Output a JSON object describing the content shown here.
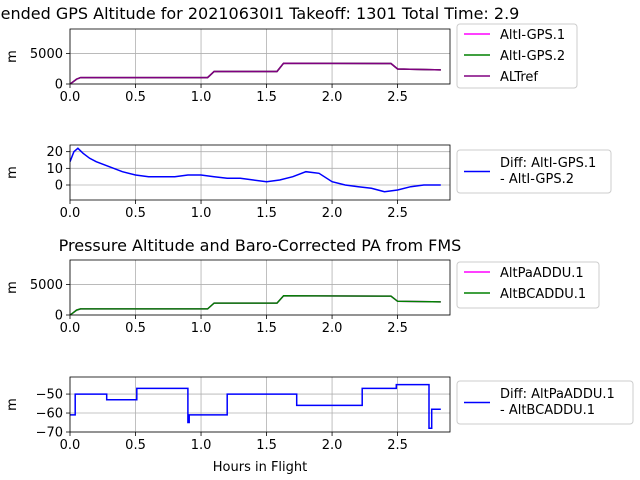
{
  "colors": {
    "magenta": "#ff00ff",
    "green": "#008000",
    "purple": "#800080",
    "blue": "#0000ff",
    "grid": "#b0b0b0"
  },
  "chart_data": [
    {
      "type": "line",
      "title": "ended GPS Altitude for 20210630I1 Takeoff: 1301 Total Time: 2.9",
      "xlabel": "",
      "ylabel": "m",
      "xlim": [
        0,
        2.9
      ],
      "ylim": [
        0,
        9000
      ],
      "xticks": [
        0,
        0.5,
        1,
        1.5,
        2,
        2.5
      ],
      "xtick_labels": [
        "0.0",
        "0.5",
        "1.0",
        "1.5",
        "2.0",
        "2.5"
      ],
      "yticks": [
        0,
        5000
      ],
      "ytick_labels": [
        "0",
        "5000"
      ],
      "grid": true,
      "legend_placement": "outside-right",
      "legend": [
        "AltI-GPS.1",
        "AltI-GPS.2",
        "ALTref"
      ],
      "series": [
        {
          "name": "AltI-GPS.1",
          "color": "#ff00ff",
          "x": [
            0,
            0.02,
            0.05,
            0.08,
            1.05,
            1.1,
            1.58,
            1.63,
            2.45,
            2.5,
            2.83
          ],
          "y": [
            0,
            300,
            800,
            1050,
            1050,
            2050,
            2050,
            3400,
            3350,
            2450,
            2300
          ]
        },
        {
          "name": "AltI-GPS.2",
          "color": "#008000",
          "x": [
            0,
            0.02,
            0.05,
            0.08,
            1.05,
            1.1,
            1.58,
            1.63,
            2.45,
            2.5,
            2.83
          ],
          "y": [
            0,
            300,
            800,
            1050,
            1050,
            2050,
            2050,
            3400,
            3350,
            2450,
            2300
          ]
        },
        {
          "name": "ALTref",
          "color": "#800080",
          "x": [
            0,
            0.02,
            0.05,
            0.08,
            1.05,
            1.1,
            1.58,
            1.63,
            2.45,
            2.5,
            2.83
          ],
          "y": [
            0,
            300,
            800,
            1050,
            1050,
            2050,
            2050,
            3400,
            3350,
            2450,
            2300
          ]
        }
      ]
    },
    {
      "type": "line",
      "title": "",
      "xlabel": "",
      "ylabel": "m",
      "xlim": [
        0,
        2.9
      ],
      "ylim": [
        -9,
        24
      ],
      "xticks": [
        0,
        0.5,
        1,
        1.5,
        2,
        2.5
      ],
      "xtick_labels": [
        "0.0",
        "0.5",
        "1.0",
        "1.5",
        "2.0",
        "2.5"
      ],
      "yticks": [
        0,
        10,
        20
      ],
      "ytick_labels": [
        "0",
        "10",
        "20"
      ],
      "grid": true,
      "legend_placement": "outside-right",
      "legend": [
        "Diff: AltI-GPS.1",
        "- AltI-GPS.2"
      ],
      "series": [
        {
          "name": "Diff: AltI-GPS.1 - AltI-GPS.2",
          "color": "#0000ff",
          "x": [
            0,
            0.03,
            0.06,
            0.1,
            0.15,
            0.2,
            0.3,
            0.4,
            0.5,
            0.6,
            0.7,
            0.8,
            0.9,
            1.0,
            1.1,
            1.2,
            1.3,
            1.4,
            1.5,
            1.6,
            1.7,
            1.8,
            1.9,
            2.0,
            2.1,
            2.2,
            2.3,
            2.4,
            2.5,
            2.6,
            2.7,
            2.83
          ],
          "y": [
            14,
            20,
            22,
            19,
            16,
            14,
            11,
            8,
            6,
            5,
            5,
            5,
            6,
            6,
            5,
            4,
            4,
            3,
            2,
            3,
            5,
            8,
            7,
            2,
            0,
            -1,
            -2,
            -4,
            -3,
            -1,
            0,
            0
          ]
        }
      ]
    },
    {
      "type": "line",
      "title": "Pressure Altitude and Baro-Corrected PA from FMS",
      "xlabel": "",
      "ylabel": "m",
      "xlim": [
        0,
        2.9
      ],
      "ylim": [
        0,
        9000
      ],
      "xticks": [
        0,
        0.5,
        1,
        1.5,
        2,
        2.5
      ],
      "xtick_labels": [
        "0.0",
        "0.5",
        "1.0",
        "1.5",
        "2.0",
        "2.5"
      ],
      "yticks": [
        0,
        5000
      ],
      "ytick_labels": [
        "0",
        "5000"
      ],
      "grid": true,
      "legend_placement": "outside-right",
      "legend": [
        "AltPaADDU.1",
        "AltBCADDU.1"
      ],
      "series": [
        {
          "name": "AltPaADDU.1",
          "color": "#ff00ff",
          "x": [
            0,
            0.02,
            0.05,
            0.08,
            1.05,
            1.1,
            1.58,
            1.63,
            2.45,
            2.5,
            2.83
          ],
          "y": [
            0,
            300,
            800,
            1000,
            1000,
            1950,
            1950,
            3150,
            3100,
            2250,
            2150
          ]
        },
        {
          "name": "AltBCADDU.1",
          "color": "#008000",
          "x": [
            0,
            0.02,
            0.05,
            0.08,
            1.05,
            1.1,
            1.58,
            1.63,
            2.45,
            2.5,
            2.83
          ],
          "y": [
            0,
            300,
            800,
            1000,
            1000,
            1950,
            1950,
            3150,
            3100,
            2250,
            2150
          ]
        }
      ]
    },
    {
      "type": "line",
      "title": "",
      "xlabel": "Hours in Flight",
      "ylabel": "m",
      "xlim": [
        0,
        2.9
      ],
      "ylim": [
        -70,
        -41
      ],
      "xticks": [
        0,
        0.5,
        1,
        1.5,
        2,
        2.5
      ],
      "xtick_labels": [
        "0.0",
        "0.5",
        "1.0",
        "1.5",
        "2.0",
        "2.5"
      ],
      "yticks": [
        -70,
        -60,
        -50
      ],
      "ytick_labels": [
        "−70",
        "−60",
        "−50"
      ],
      "grid": true,
      "legend_placement": "outside-right",
      "legend": [
        "Diff: AltPaADDU.1",
        "- AltBCADDU.1"
      ],
      "series": [
        {
          "name": "Diff: AltPaADDU.1 - AltBCADDU.1",
          "color": "#0000ff",
          "x": [
            0,
            0.04,
            0.04,
            0.28,
            0.28,
            0.51,
            0.51,
            0.9,
            0.9,
            0.91,
            0.91,
            1.2,
            1.2,
            1.73,
            1.73,
            2.23,
            2.23,
            2.49,
            2.49,
            2.74,
            2.74,
            2.76,
            2.76,
            2.83
          ],
          "y": [
            -61,
            -61,
            -50,
            -50,
            -53,
            -53,
            -47,
            -47,
            -65,
            -65,
            -61,
            -61,
            -50,
            -50,
            -56,
            -56,
            -47,
            -47,
            -45,
            -45,
            -68,
            -68,
            -58,
            -58
          ]
        }
      ]
    }
  ]
}
